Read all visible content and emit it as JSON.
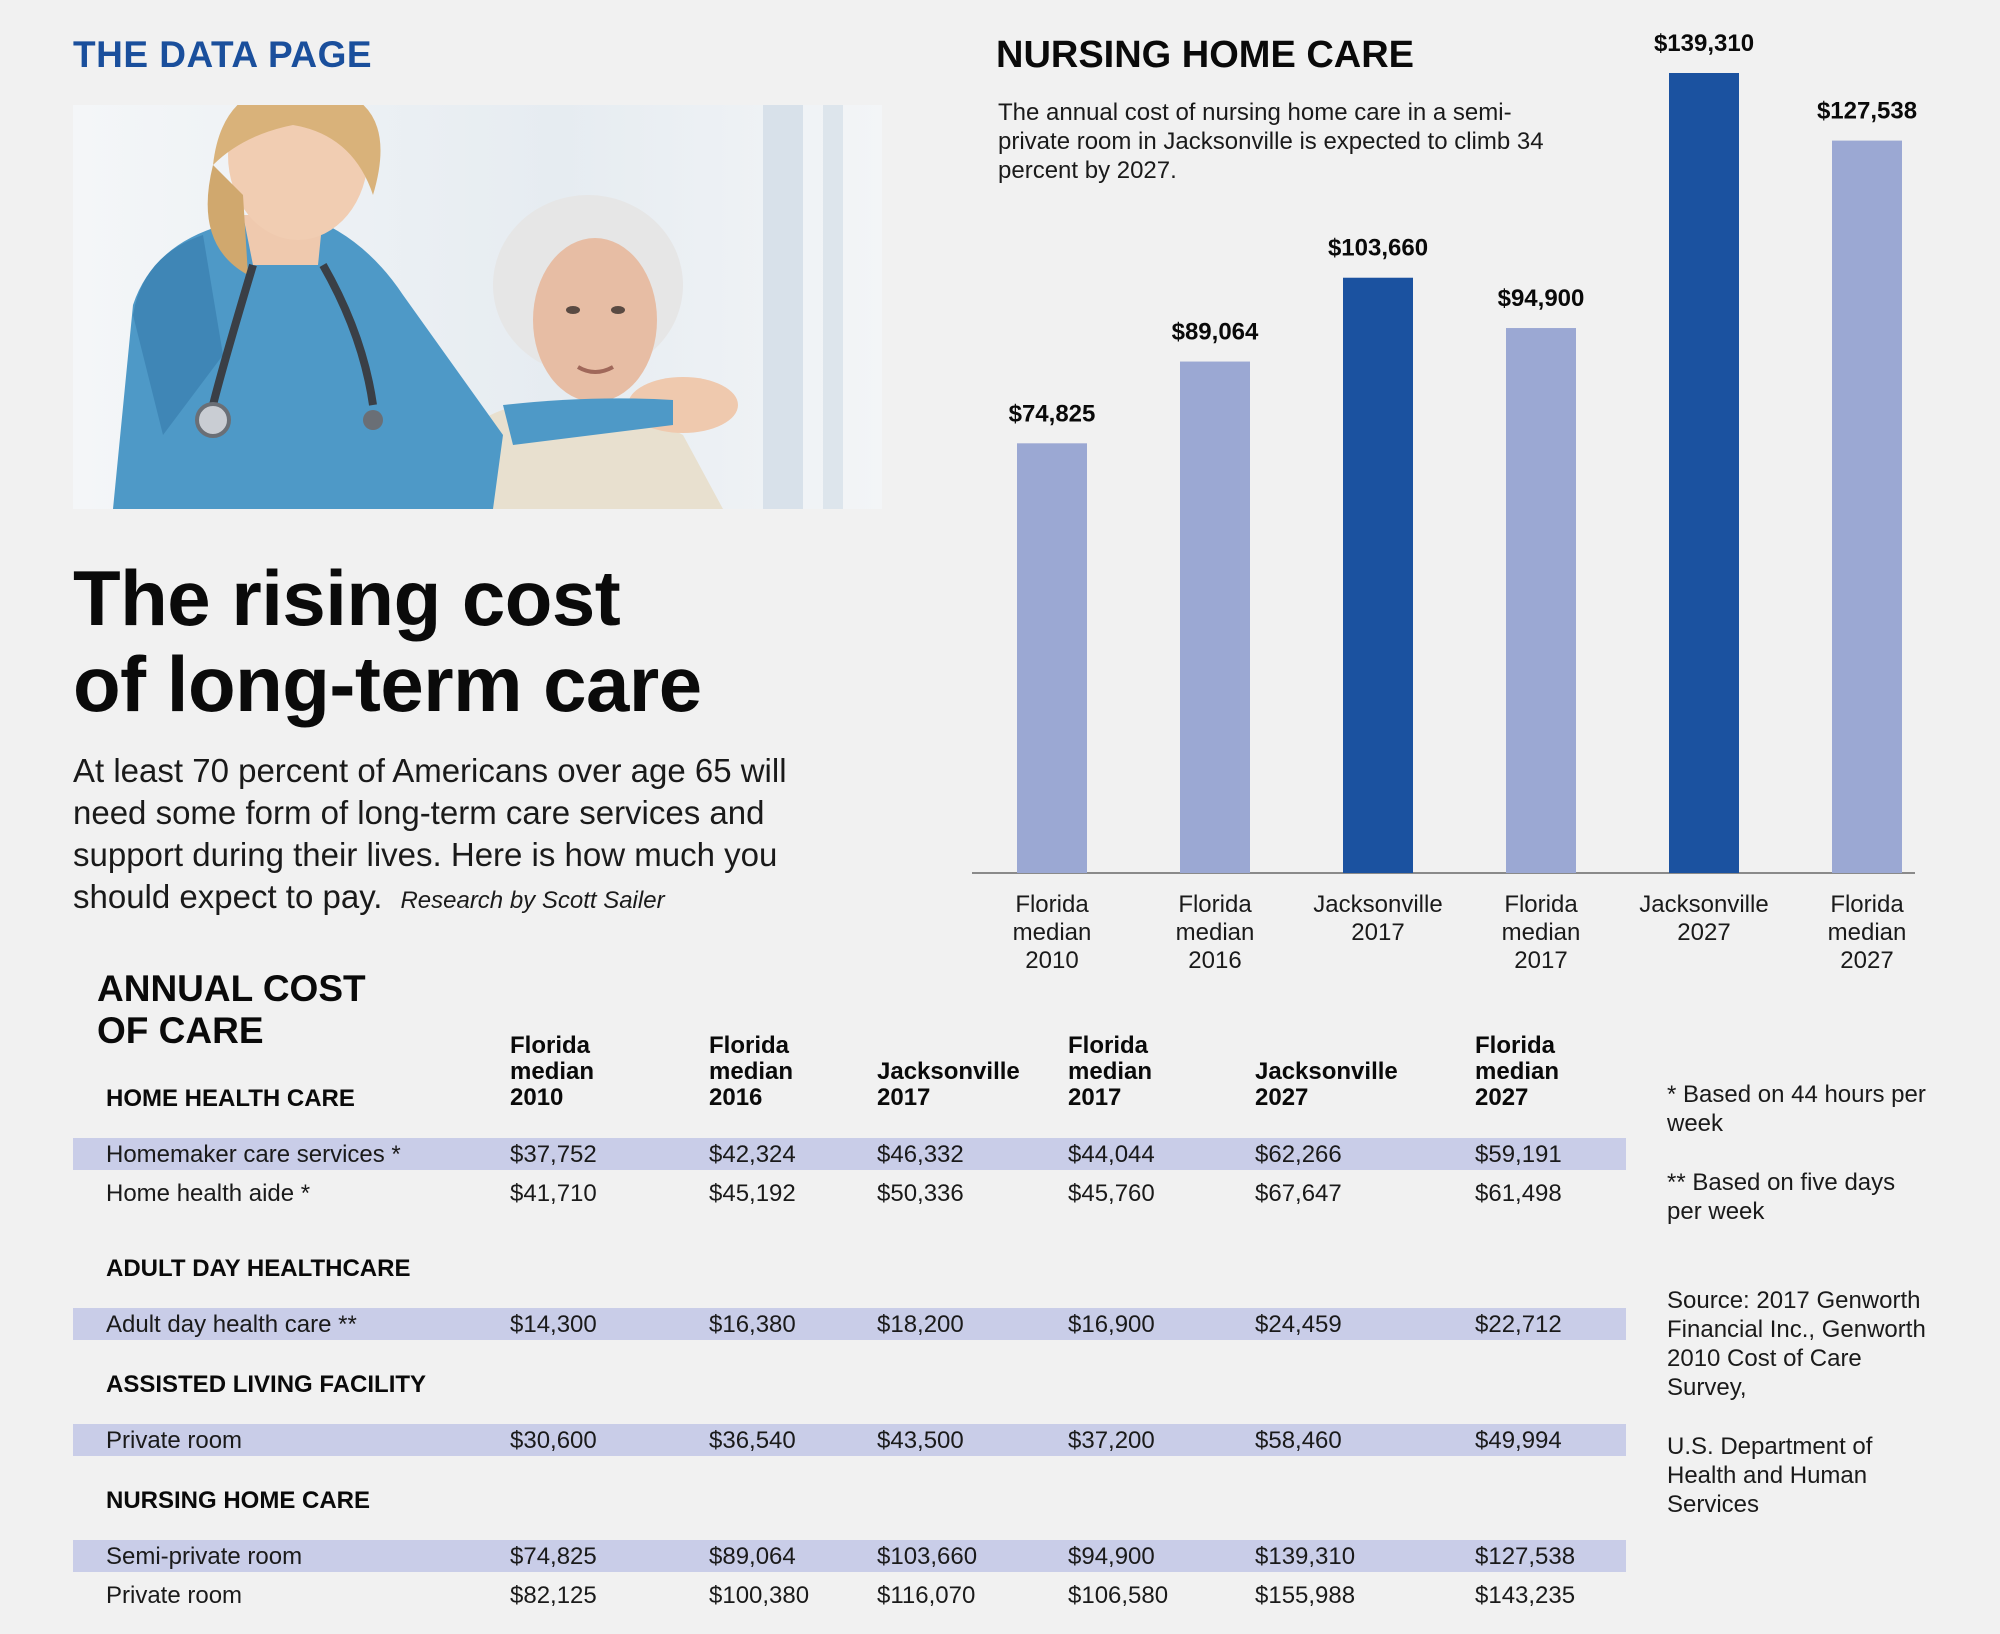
{
  "header": {
    "kicker": "THE DATA PAGE"
  },
  "article": {
    "headline_line1": "The rising cost",
    "headline_line2": "of long-term care",
    "deck": "At least 70 percent of Americans over age 65 will need some form of long-term care services and support during their lives. Here is how much you should expect to pay.",
    "credit": "Research by Scott Sailer"
  },
  "chart_data": {
    "type": "bar",
    "title": "NURSING HOME CARE",
    "subtitle": "The annual cost of nursing home care in a semi-private room in Jacksonville is expected to climb 34 percent by 2027.",
    "categories": [
      [
        "Florida",
        "median",
        "2010"
      ],
      [
        "Florida",
        "median",
        "2016"
      ],
      [
        "Jacksonville",
        "2017"
      ],
      [
        "Florida",
        "median",
        "2017"
      ],
      [
        "Jacksonville",
        "2027"
      ],
      [
        "Florida",
        "median",
        "2027"
      ]
    ],
    "values": [
      74825,
      89064,
      103660,
      94900,
      139310,
      127538
    ],
    "value_labels": [
      "$74,825",
      "$89,064",
      "$103,660",
      "$94,900",
      "$139,310",
      "$127,538"
    ],
    "highlight": [
      false,
      false,
      true,
      false,
      true,
      false
    ],
    "colors": {
      "default": "#9ba8d3",
      "highlight": "#1b52a0"
    },
    "xlabel": "",
    "ylabel": "",
    "ylim": [
      0,
      139310
    ],
    "grid": false
  },
  "table": {
    "title_line1": "ANNUAL COST",
    "title_line2": "OF CARE",
    "columns": [
      [
        "Florida",
        "median",
        "2010"
      ],
      [
        "Florida",
        "median",
        "2016"
      ],
      [
        "Jacksonville",
        "2017"
      ],
      [
        "Florida",
        "median",
        "2017"
      ],
      [
        "Jacksonville",
        "2027"
      ],
      [
        "Florida",
        "median",
        "2027"
      ]
    ],
    "sections": [
      {
        "title": "HOME HEALTH CARE",
        "rows": [
          {
            "label": "Homemaker care services *",
            "values": [
              "$37,752",
              "$42,324",
              "$46,332",
              "$44,044",
              "$62,266",
              "$59,191"
            ]
          },
          {
            "label": "Home health aide *",
            "values": [
              "$41,710",
              "$45,192",
              "$50,336",
              "$45,760",
              "$67,647",
              "$61,498"
            ]
          }
        ]
      },
      {
        "title": "ADULT DAY HEALTHCARE",
        "rows": [
          {
            "label": "Adult day health care **",
            "values": [
              "$14,300",
              "$16,380",
              "$18,200",
              "$16,900",
              "$24,459",
              "$22,712"
            ]
          }
        ]
      },
      {
        "title": "ASSISTED LIVING FACILITY",
        "rows": [
          {
            "label": "Private room",
            "values": [
              "$30,600",
              "$36,540",
              "$43,500",
              "$37,200",
              "$58,460",
              "$49,994"
            ]
          }
        ]
      },
      {
        "title": "NURSING HOME CARE",
        "rows": [
          {
            "label": "Semi-private room",
            "values": [
              "$74,825",
              "$89,064",
              "$103,660",
              "$94,900",
              "$139,310",
              "$127,538"
            ]
          },
          {
            "label": "Private room",
            "values": [
              "$82,125",
              "$100,380",
              "$116,070",
              "$106,580",
              "$155,988",
              "$143,235"
            ]
          }
        ]
      }
    ]
  },
  "notes": {
    "note1": "* Based on 44 hours per week",
    "note2": "** Based on five days per week",
    "source": "Source: 2017 Genworth Financial Inc., Genworth 2010 Cost of Care Survey,",
    "source2": "U.S. Department of Health and Human Services"
  }
}
